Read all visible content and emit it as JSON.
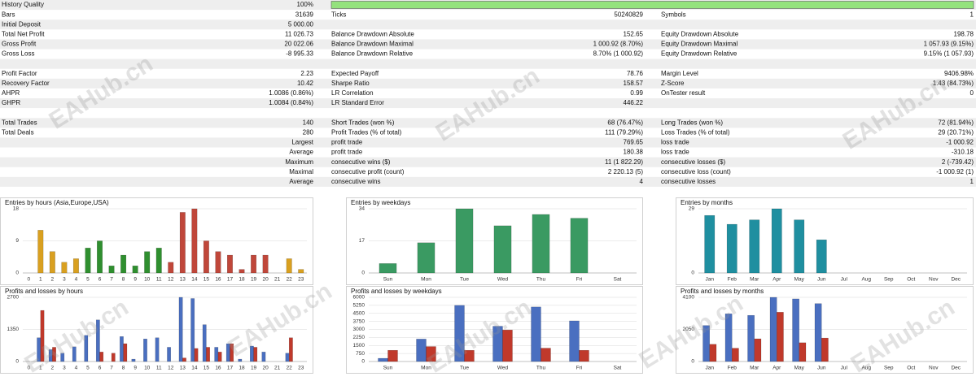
{
  "watermark": "EAHub.cn",
  "report": {
    "sections": [
      [
        [
          "History Quality",
          "100%",
          null,
          null,
          null,
          null
        ],
        [
          "Bars",
          "31639",
          "Ticks",
          "50240829",
          "Symbols",
          "1"
        ],
        [
          "Initial Deposit",
          "5 000.00",
          null,
          null,
          null,
          null
        ],
        [
          "Total Net Profit",
          "11 026.73",
          "Balance Drawdown Absolute",
          "152.65",
          "Equity Drawdown Absolute",
          "198.78"
        ],
        [
          "Gross Profit",
          "20 022.06",
          "Balance Drawdown Maximal",
          "1 000.92 (8.70%)",
          "Equity Drawdown Maximal",
          "1 057.93 (9.15%)"
        ],
        [
          "Gross Loss",
          "-8 995.33",
          "Balance Drawdown Relative",
          "8.70% (1 000.92)",
          "Equity Drawdown Relative",
          "9.15% (1 057.93)"
        ]
      ],
      [
        [
          "Profit Factor",
          "2.23",
          "Expected Payoff",
          "78.76",
          "Margin Level",
          "9406.98%"
        ],
        [
          "Recovery Factor",
          "10.42",
          "Sharpe Ratio",
          "158.57",
          "Z-Score",
          "1.43 (84.73%)"
        ],
        [
          "AHPR",
          "1.0086 (0.86%)",
          "LR Correlation",
          "0.99",
          "OnTester result",
          "0"
        ],
        [
          "GHPR",
          "1.0084 (0.84%)",
          "LR Standard Error",
          "446.22",
          null,
          null
        ]
      ],
      [
        [
          "Total Trades",
          "140",
          "Short Trades (won %)",
          "68 (76.47%)",
          "Long Trades (won %)",
          "72 (81.94%)"
        ],
        [
          "Total Deals",
          "280",
          "Profit Trades (% of total)",
          "111 (79.29%)",
          "Loss Trades (% of total)",
          "29 (20.71%)"
        ],
        [
          null,
          "Largest",
          "profit trade",
          "769.65",
          "loss trade",
          "-1 000.92"
        ],
        [
          null,
          "Average",
          "profit trade",
          "180.38",
          "loss trade",
          "-310.18"
        ],
        [
          null,
          "Maximum",
          "consecutive wins ($)",
          "11 (1 822.29)",
          "consecutive losses ($)",
          "2 (-739.42)"
        ],
        [
          null,
          "Maximal",
          "consecutive profit (count)",
          "2 220.13 (5)",
          "consecutive loss (count)",
          "-1 000.92 (1)"
        ],
        [
          null,
          "Average",
          "consecutive wins",
          "4",
          "consecutive losses",
          "1"
        ]
      ]
    ]
  },
  "chart_data": [
    {
      "type": "bar",
      "title": "Entries by hours (Asia,Europe,USA)",
      "categories": [
        "0",
        "1",
        "2",
        "3",
        "4",
        "5",
        "6",
        "7",
        "8",
        "9",
        "10",
        "11",
        "12",
        "13",
        "14",
        "15",
        "16",
        "17",
        "18",
        "19",
        "20",
        "21",
        "22",
        "23"
      ],
      "values": [
        0,
        12,
        6,
        3,
        4,
        7,
        9,
        2,
        5,
        2,
        6,
        7,
        3,
        17,
        18,
        9,
        6,
        5,
        1,
        5,
        5,
        0,
        4,
        1
      ],
      "colors": [
        "#d9a020",
        "#d9a020",
        "#d9a020",
        "#d9a020",
        "#d9a020",
        "#2f8f2f",
        "#2f8f2f",
        "#2f8f2f",
        "#2f8f2f",
        "#2f8f2f",
        "#2f8f2f",
        "#2f8f2f",
        "#c0473a",
        "#c0473a",
        "#c0473a",
        "#c0473a",
        "#c0473a",
        "#c0473a",
        "#c0473a",
        "#c0473a",
        "#c0473a",
        "#c0473a",
        "#d9a020",
        "#d9a020"
      ],
      "ylim": [
        0,
        18
      ],
      "yticks": [
        0,
        9,
        18
      ]
    },
    {
      "type": "bar",
      "title": "Entries by weekdays",
      "categories": [
        "Sun",
        "Mon",
        "Tue",
        "Wed",
        "Thu",
        "Fri",
        "Sat"
      ],
      "values": [
        5,
        16,
        34,
        25,
        31,
        29,
        0
      ],
      "color": "#3a9a62",
      "ylim": [
        0,
        34
      ],
      "yticks": [
        0,
        17,
        34
      ]
    },
    {
      "type": "bar",
      "title": "Entries by months",
      "categories": [
        "Jan",
        "Feb",
        "Mar",
        "Apr",
        "May",
        "Jun",
        "Jul",
        "Aug",
        "Sep",
        "Oct",
        "Nov",
        "Dec"
      ],
      "values": [
        26,
        22,
        24,
        29,
        24,
        15,
        0,
        0,
        0,
        0,
        0,
        0
      ],
      "color": "#1f8fa0",
      "ylim": [
        0,
        29
      ],
      "yticks": [
        0,
        29
      ]
    },
    {
      "type": "grouped-bar",
      "title": "Profits and losses by hours",
      "categories": [
        "0",
        "1",
        "2",
        "3",
        "4",
        "5",
        "6",
        "7",
        "8",
        "9",
        "10",
        "11",
        "12",
        "13",
        "14",
        "15",
        "16",
        "17",
        "18",
        "19",
        "20",
        "21",
        "22",
        "23"
      ],
      "series": [
        {
          "color": "#4a6fc0",
          "values": [
            0,
            1000,
            500,
            350,
            620,
            1100,
            1750,
            0,
            1050,
            100,
            950,
            1000,
            600,
            2700,
            2650,
            1550,
            600,
            750,
            100,
            650,
            400,
            0,
            350,
            0
          ]
        },
        {
          "color": "#c0392b",
          "values": [
            0,
            2150,
            600,
            0,
            0,
            0,
            400,
            350,
            750,
            0,
            0,
            0,
            0,
            150,
            550,
            600,
            400,
            750,
            0,
            600,
            0,
            0,
            1000,
            0
          ]
        }
      ],
      "ylim": [
        0,
        2700
      ],
      "yticks": [
        0,
        1350,
        2700
      ]
    },
    {
      "type": "grouped-bar",
      "title": "Profits and losses by weekdays",
      "categories": [
        "Sun",
        "Mon",
        "Tue",
        "Wed",
        "Thu",
        "Fri",
        "Sat"
      ],
      "series": [
        {
          "color": "#4a6fc0",
          "values": [
            300,
            2100,
            5250,
            3300,
            5100,
            3800,
            0
          ]
        },
        {
          "color": "#c0392b",
          "values": [
            1050,
            1400,
            1050,
            2950,
            1250,
            1050,
            0
          ]
        }
      ],
      "ylim": [
        0,
        6000
      ],
      "yticks": [
        0,
        750,
        1500,
        2250,
        3000,
        3750,
        4500,
        5250,
        6000
      ]
    },
    {
      "type": "grouped-bar",
      "title": "Profits and losses by months",
      "categories": [
        "Jan",
        "Feb",
        "Mar",
        "Apr",
        "May",
        "Jun",
        "Jul",
        "Aug",
        "Sep",
        "Oct",
        "Nov",
        "Dec"
      ],
      "series": [
        {
          "color": "#4a6fc0",
          "values": [
            2300,
            3050,
            2950,
            4100,
            4000,
            3700,
            0,
            0,
            0,
            0,
            0,
            0
          ]
        },
        {
          "color": "#c0392b",
          "values": [
            1100,
            850,
            1450,
            3150,
            1200,
            1500,
            0,
            0,
            0,
            0,
            0,
            0
          ]
        }
      ],
      "ylim": [
        0,
        4100
      ],
      "yticks": [
        0,
        2050,
        4100
      ]
    }
  ]
}
